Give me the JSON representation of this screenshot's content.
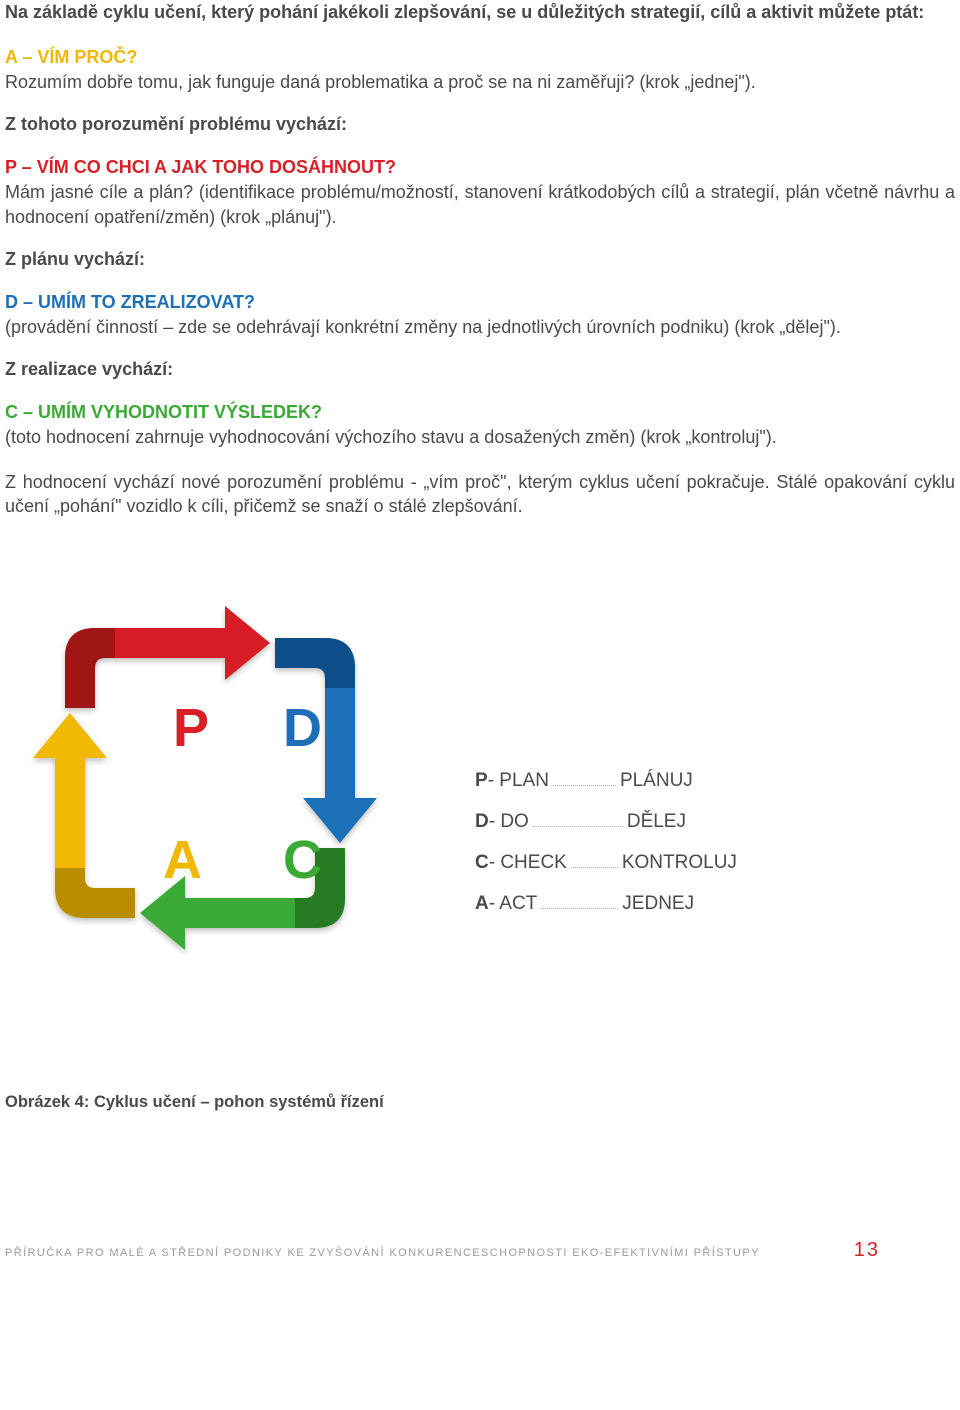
{
  "intro": "Na základě cyklu učení, který pohání jakékoli zlepšování, se u důležitých strategií, cílů a aktivit můžete ptát:",
  "sections": {
    "a": {
      "head": "A – VÍM PROČ?",
      "body": "Rozumím dobře tomu, jak funguje daná problematika a proč se na ni zaměřuji? (krok „jednej\").",
      "sub": "Z tohoto porozumění problému vychází:"
    },
    "p": {
      "head": "P –  VÍM CO CHCI A JAK TOHO DOSÁHNOUT?",
      "body": "Mám jasné cíle a plán? (identifikace problému/možností, stanovení krátkodobých cílů a strategií, plán včetně návrhu a hodnocení opatření/změn) (krok „plánuj\").",
      "sub": "Z plánu vychází:"
    },
    "d": {
      "head": "D – UMÍM TO ZREALIZOVAT?",
      "body": "(provádění činností – zde se odehrávají konkrétní změny na jednotlivých úrovních podniku) (krok „dělej\").",
      "sub": "Z realizace vychází:"
    },
    "c": {
      "head": "C – UMÍM VYHODNOTIT VÝSLEDEK?",
      "body": "(toto hodnocení zahrnuje vyhodnocování výchozího stavu a dosažených změn) (krok „kontroluj\")."
    }
  },
  "closing": "Z hodnocení vychází nové porozumění problému - „vím proč\", kterým cyklus učení pokračuje. Stálé opakování cyklu učení „pohání\" vozidlo k cíli, přičemž se snaží o stálé zlepšování.",
  "pdca": {
    "letters": {
      "P": "P",
      "D": "D",
      "C": "C",
      "A": "A"
    },
    "colors": {
      "P": "#d61f26",
      "P_dark": "#a01217",
      "D": "#1e6fb8",
      "D_dark": "#0f4e8a",
      "C": "#3aa935",
      "C_dark": "#277a24",
      "A": "#f0b800",
      "A_dark": "#b88d00"
    },
    "legend": [
      {
        "letter": "P",
        "en": " - PLAN",
        "cz": "PLÁNUJ",
        "dots_w": 63
      },
      {
        "letter": "D",
        "en": " - DO",
        "cz": "DĚLEJ",
        "dots_w": 90
      },
      {
        "letter": "C",
        "en": " - CHECK",
        "cz": "KONTROLUJ",
        "dots_w": 47
      },
      {
        "letter": "A",
        "en": " - ACT",
        "cz": "JEDNEJ",
        "dots_w": 77
      }
    ]
  },
  "caption": "Obrázek 4: Cyklus učení – pohon systémů řízení",
  "footer": "PŘÍRUČKA PRO MALÉ A STŘEDNÍ PODNIKY KE ZVYŠOVÁNÍ KONKURENCESCHOPNOSTI EKO-EFEKTIVNÍMI PŘÍSTUPY",
  "page": "13"
}
